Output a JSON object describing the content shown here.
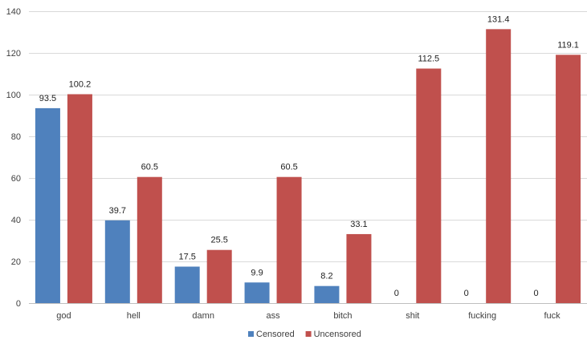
{
  "chart_data": {
    "type": "bar",
    "categories": [
      "god",
      "hell",
      "damn",
      "ass",
      "bitch",
      "shit",
      "fucking",
      "fuck"
    ],
    "series": [
      {
        "name": "Censored",
        "color": "#4f81bd",
        "values": [
          93.5,
          39.7,
          17.5,
          9.9,
          8.2,
          0,
          0,
          0
        ]
      },
      {
        "name": "Uncensored",
        "color": "#c0504d",
        "values": [
          100.2,
          60.5,
          25.5,
          60.5,
          33.1,
          112.5,
          131.4,
          119.1
        ]
      }
    ],
    "ylim": [
      0,
      140
    ],
    "yticks": [
      0,
      20,
      40,
      60,
      80,
      100,
      120,
      140
    ],
    "grid": true,
    "legend": "bottom-center",
    "title": "",
    "xlabel": "",
    "ylabel": ""
  }
}
